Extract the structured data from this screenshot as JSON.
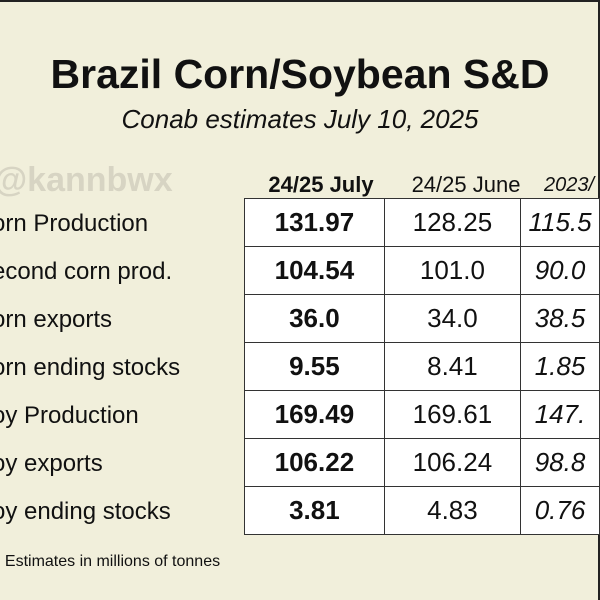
{
  "chart_data": {
    "type": "table",
    "title": "Brazil Corn/Soybean S&D",
    "subtitle": "Conab estimates July 10, 2025",
    "watermark": "@kannbwx",
    "columns": [
      "24/25 July",
      "24/25 June",
      "2023/"
    ],
    "rows": [
      {
        "label": "orn Production",
        "values": [
          "131.97",
          "128.25",
          "115.5"
        ]
      },
      {
        "label": "econd corn prod.",
        "values": [
          "104.54",
          "101.0",
          "90.0"
        ]
      },
      {
        "label": "orn exports",
        "values": [
          "36.0",
          "34.0",
          "38.5"
        ]
      },
      {
        "label": "orn ending stocks",
        "values": [
          "9.55",
          "8.41",
          "1.85"
        ]
      },
      {
        "label": "oy Production",
        "values": [
          "169.49",
          "169.61",
          "147."
        ]
      },
      {
        "label": "oy exports",
        "values": [
          "106.22",
          "106.24",
          "98.8"
        ]
      },
      {
        "label": "oy ending stocks",
        "values": [
          "3.81",
          "4.83",
          "0.76"
        ]
      }
    ],
    "footnote": ": Estimates in millions of tonnes"
  }
}
